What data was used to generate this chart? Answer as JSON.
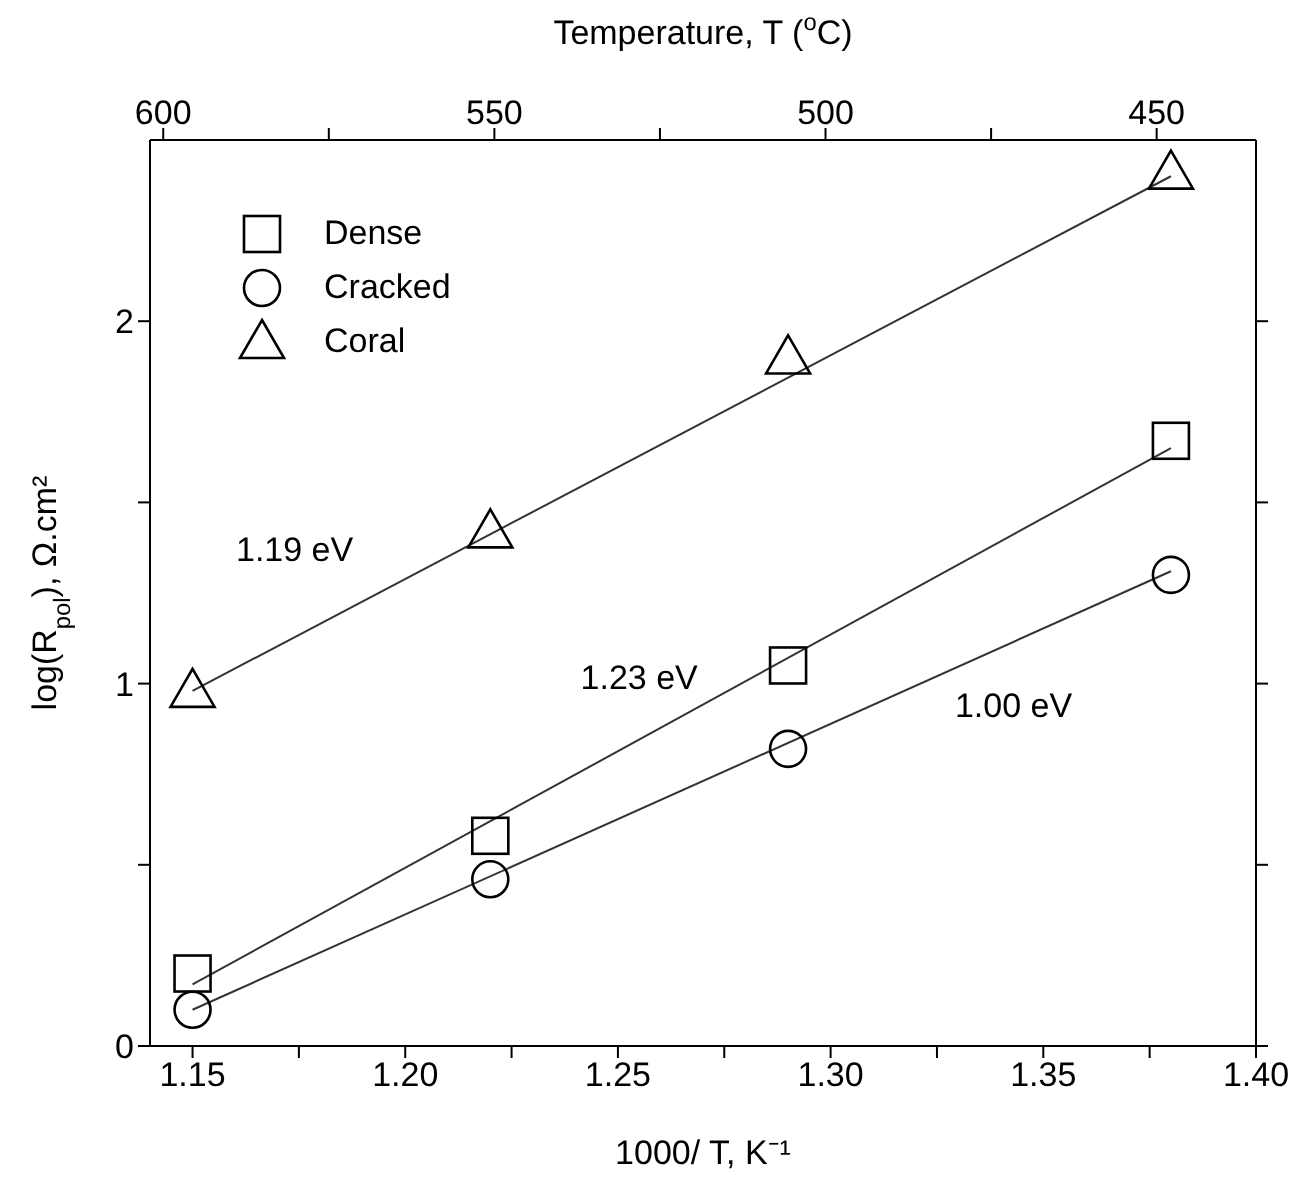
{
  "chart_data": {
    "type": "scatter",
    "xlabel": "1000/ T, K⁻¹",
    "ylabel": "log(R$_{pol}$), Ω.cm²",
    "x2label": "Temperature, T ($^{o}$C)",
    "xlim": [
      1.14,
      1.4
    ],
    "xticks": [
      1.15,
      {
        "value": 1.175,
        "label": null
      },
      "1.20",
      {
        "value": 1.225,
        "label": null
      },
      1.25,
      {
        "value": 1.275,
        "label": null
      },
      "1.30",
      {
        "value": 1.325,
        "label": null
      },
      1.35,
      {
        "value": 1.375,
        "label": null
      },
      "1.40"
    ],
    "x2lim": [
      602,
      435
    ],
    "x2ticks": [
      600,
      {
        "value": 575,
        "label": null
      },
      550,
      {
        "value": 525,
        "label": null
      },
      500,
      {
        "value": 475,
        "label": null
      },
      450
    ],
    "ylim": [
      0,
      2.5
    ],
    "yticks": [
      0,
      {
        "value": 0.5,
        "label": null
      },
      1,
      {
        "value": 1.5,
        "label": null
      },
      2
    ],
    "grid": false,
    "legend": "top left",
    "series": [
      {
        "name": "Dense",
        "marker": "square",
        "color": "#000000",
        "x": [
          1.15,
          1.22,
          1.29,
          1.38
        ],
        "values": [
          0.2,
          0.58,
          1.05,
          1.67
        ]
      },
      {
        "name": "Cracked",
        "marker": "circle",
        "color": "#000000",
        "x": [
          1.15,
          1.22,
          1.29,
          1.38
        ],
        "values": [
          0.1,
          0.46,
          0.82,
          1.3
        ]
      },
      {
        "name": "Coral",
        "marker": "triangle",
        "color": "#000000",
        "x": [
          1.15,
          1.22,
          1.29,
          1.38
        ],
        "values": [
          0.98,
          1.42,
          1.9,
          2.41
        ]
      },
      {
        "type": "line",
        "color": "#333333",
        "x": [
          1.15,
          1.38
        ],
        "values": [
          0.17,
          1.65
        ]
      },
      {
        "type": "line",
        "color": "#333333",
        "x": [
          1.15,
          1.38
        ],
        "values": [
          0.1,
          1.31
        ]
      },
      {
        "type": "line",
        "color": "#333333",
        "x": [
          1.15,
          1.38
        ],
        "values": [
          0.98,
          2.4
        ]
      }
    ],
    "annotations": [
      {
        "text": "1.19 eV",
        "x": 1.174,
        "y": 1.13
      },
      {
        "text": "1.23 eV",
        "x": 1.255,
        "y": 0.85
      },
      {
        "text": "1.00 eV",
        "x": 1.343,
        "y": 1.12
      }
    ]
  }
}
